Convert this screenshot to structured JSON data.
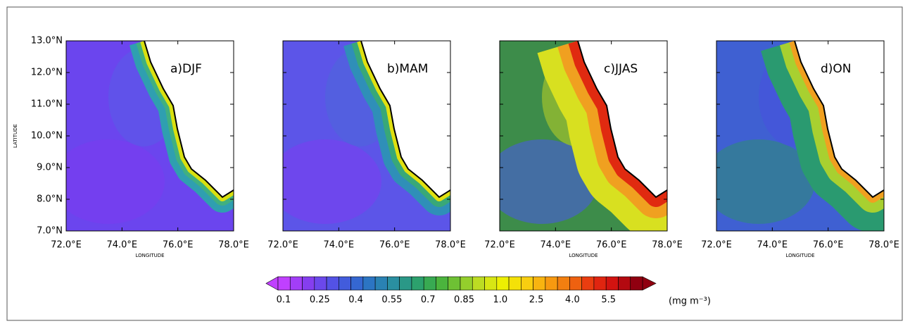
{
  "y_axis_label": "LATITUDE",
  "lat_ticks": [
    "13.0°N",
    "12.0°N",
    "11.0°N",
    "10.0°N",
    "9.0°N",
    "8.0°N",
    "7.0°N"
  ],
  "lon_ticks": [
    "72.0°E",
    "74.0°E",
    "76.0°E",
    "78.0°E"
  ],
  "panels": [
    {
      "label": "a)DJF",
      "x_axis_label": "LONGITUDE"
    },
    {
      "label": "b)MAM"
    },
    {
      "label": "c)JJAS",
      "x_axis_label": "LONGITUDE"
    },
    {
      "label": "d)ON",
      "x_axis_label": "LONGITUDE"
    }
  ],
  "colorbar": {
    "labels": [
      "0.1",
      "0.25",
      "0.4",
      "0.55",
      "0.7",
      "0.85",
      "1.0",
      "2.5",
      "4.0",
      "5.5"
    ],
    "unit": "(mg m⁻³)"
  }
}
